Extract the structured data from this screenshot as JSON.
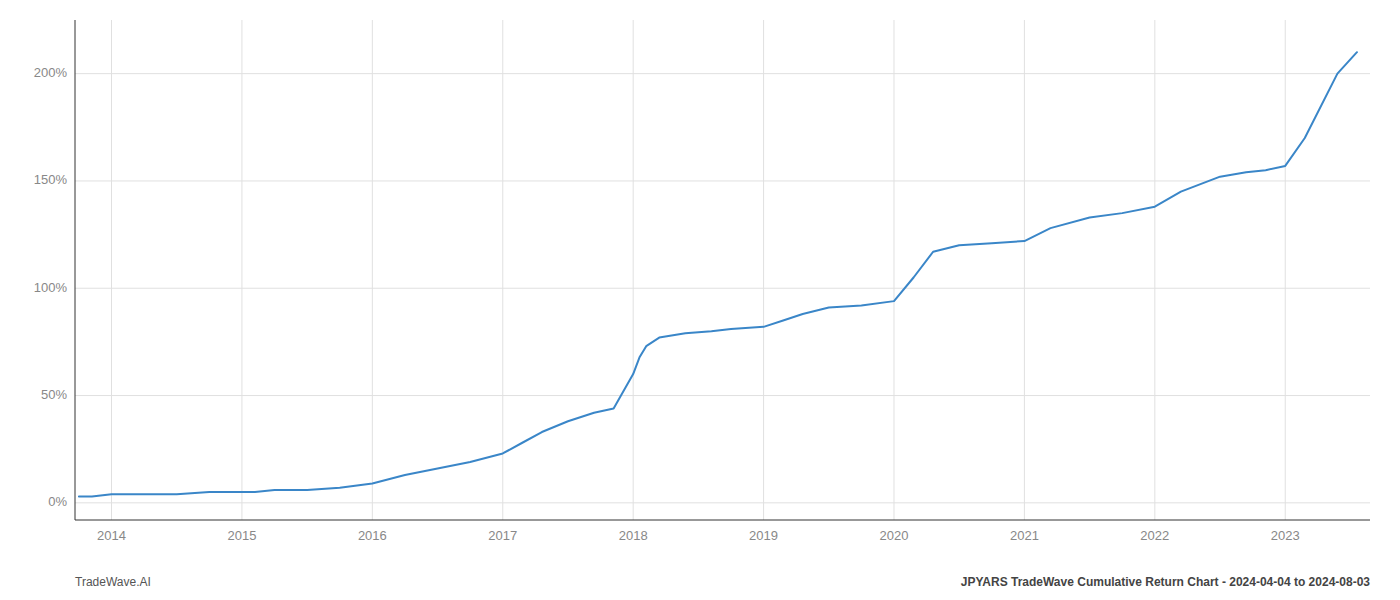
{
  "chart_data": {
    "type": "line",
    "title": "JPYARS TradeWave Cumulative Return Chart - 2024-04-04 to 2024-08-03",
    "annotations": [
      "TradeWave.AI"
    ],
    "color": "#3a86c8",
    "grid": true,
    "xlim": [
      2013.72,
      2023.65
    ],
    "xticks": [
      2014,
      2015,
      2016,
      2017,
      2018,
      2019,
      2020,
      2021,
      2022,
      2023
    ],
    "ylim": [
      -8,
      225
    ],
    "yticks": [
      {
        "value": 0,
        "label": "0%"
      },
      {
        "value": 50,
        "label": "50%"
      },
      {
        "value": 100,
        "label": "100%"
      },
      {
        "value": 150,
        "label": "150%"
      },
      {
        "value": 200,
        "label": "200%"
      }
    ],
    "x": [
      2013.75,
      2013.85,
      2014.0,
      2014.2,
      2014.5,
      2014.75,
      2015.0,
      2015.1,
      2015.25,
      2015.5,
      2015.75,
      2016.0,
      2016.25,
      2016.5,
      2016.75,
      2017.0,
      2017.15,
      2017.3,
      2017.5,
      2017.7,
      2017.85,
      2018.0,
      2018.05,
      2018.1,
      2018.2,
      2018.4,
      2018.6,
      2018.75,
      2019.0,
      2019.15,
      2019.3,
      2019.5,
      2019.75,
      2020.0,
      2020.15,
      2020.3,
      2020.5,
      2020.75,
      2021.0,
      2021.2,
      2021.5,
      2021.75,
      2022.0,
      2022.2,
      2022.5,
      2022.7,
      2022.85,
      2023.0,
      2023.15,
      2023.4,
      2023.55
    ],
    "values": [
      3,
      3,
      4,
      4,
      4,
      5,
      5,
      5,
      6,
      6,
      7,
      9,
      13,
      16,
      19,
      23,
      28,
      33,
      38,
      42,
      44,
      60,
      68,
      73,
      77,
      79,
      80,
      81,
      82,
      85,
      88,
      91,
      92,
      94,
      105,
      117,
      120,
      121,
      122,
      128,
      133,
      135,
      138,
      145,
      152,
      154,
      155,
      157,
      170,
      200,
      210
    ]
  }
}
